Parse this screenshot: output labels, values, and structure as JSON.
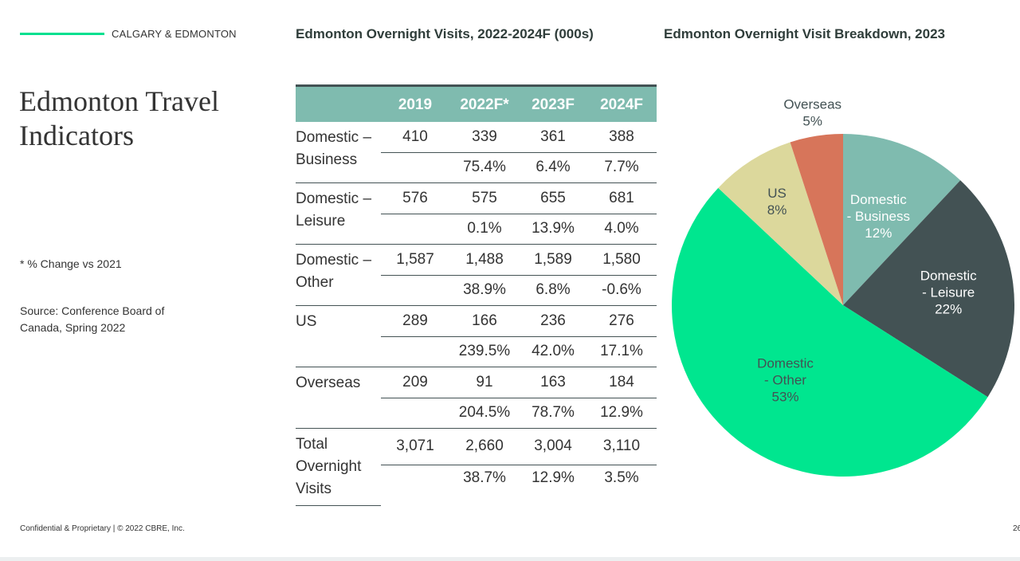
{
  "header": {
    "section_label": "CALGARY & EDMONTON",
    "page_title": "Edmonton Travel Indicators"
  },
  "notes": {
    "change_note": "* % Change vs 2021",
    "source": "Source: Conference Board of Canada, Spring 2022"
  },
  "footer": {
    "confidential": "Confidential & Proprietary | © 2022 CBRE, Inc.",
    "page_number": "26"
  },
  "colors": {
    "accent": "#00e08f",
    "table_header": "#7fbbaf",
    "dark": "#435254"
  },
  "chart_data": [
    {
      "type": "table",
      "title": "Edmonton Overnight Visits,  2022-2024F (000s)",
      "columns": [
        "",
        "2019",
        "2022F*",
        "2023F",
        "2024F"
      ],
      "rows": [
        {
          "label": "Domestic – Business",
          "values": [
            "410",
            "339",
            "361",
            "388"
          ],
          "changes": [
            "",
            "75.4%",
            "6.4%",
            "7.7%"
          ]
        },
        {
          "label": "Domestic – Leisure",
          "values": [
            "576",
            "575",
            "655",
            "681"
          ],
          "changes": [
            "",
            "0.1%",
            "13.9%",
            "4.0%"
          ]
        },
        {
          "label": "Domestic – Other",
          "values": [
            "1,587",
            "1,488",
            "1,589",
            "1,580"
          ],
          "changes": [
            "",
            "38.9%",
            "6.8%",
            "-0.6%"
          ]
        },
        {
          "label": "US",
          "values": [
            "289",
            "166",
            "236",
            "276"
          ],
          "changes": [
            "",
            "239.5%",
            "42.0%",
            "17.1%"
          ]
        },
        {
          "label": "Overseas",
          "values": [
            "209",
            "91",
            "163",
            "184"
          ],
          "changes": [
            "",
            "204.5%",
            "78.7%",
            "12.9%"
          ]
        },
        {
          "label": "Total Overnight Visits",
          "values": [
            "3,071",
            "2,660",
            "3,004",
            "3,110"
          ],
          "changes": [
            "",
            "38.7%",
            "12.9%",
            "3.5%"
          ]
        }
      ]
    },
    {
      "type": "pie",
      "title": "Edmonton Overnight Visit Breakdown, 2023",
      "slices": [
        {
          "label": [
            "Domestic",
            "- Business"
          ],
          "pct_label": "12%",
          "value": 12,
          "color": "#7fbbaf",
          "text_color": "#ffffff"
        },
        {
          "label": [
            "Domestic",
            "- Leisure"
          ],
          "pct_label": "22%",
          "value": 22,
          "color": "#435254",
          "text_color": "#ffffff"
        },
        {
          "label": [
            "Domestic",
            "- Other"
          ],
          "pct_label": "53%",
          "value": 53,
          "color": "#00e68f",
          "text_color": "#435254"
        },
        {
          "label": [
            "US"
          ],
          "pct_label": "8%",
          "value": 8,
          "color": "#dcd89c",
          "text_color": "#435254"
        },
        {
          "label": [
            "Overseas"
          ],
          "pct_label": "5%",
          "value": 5,
          "color": "#d7755a",
          "text_color": "#435254"
        }
      ]
    }
  ]
}
